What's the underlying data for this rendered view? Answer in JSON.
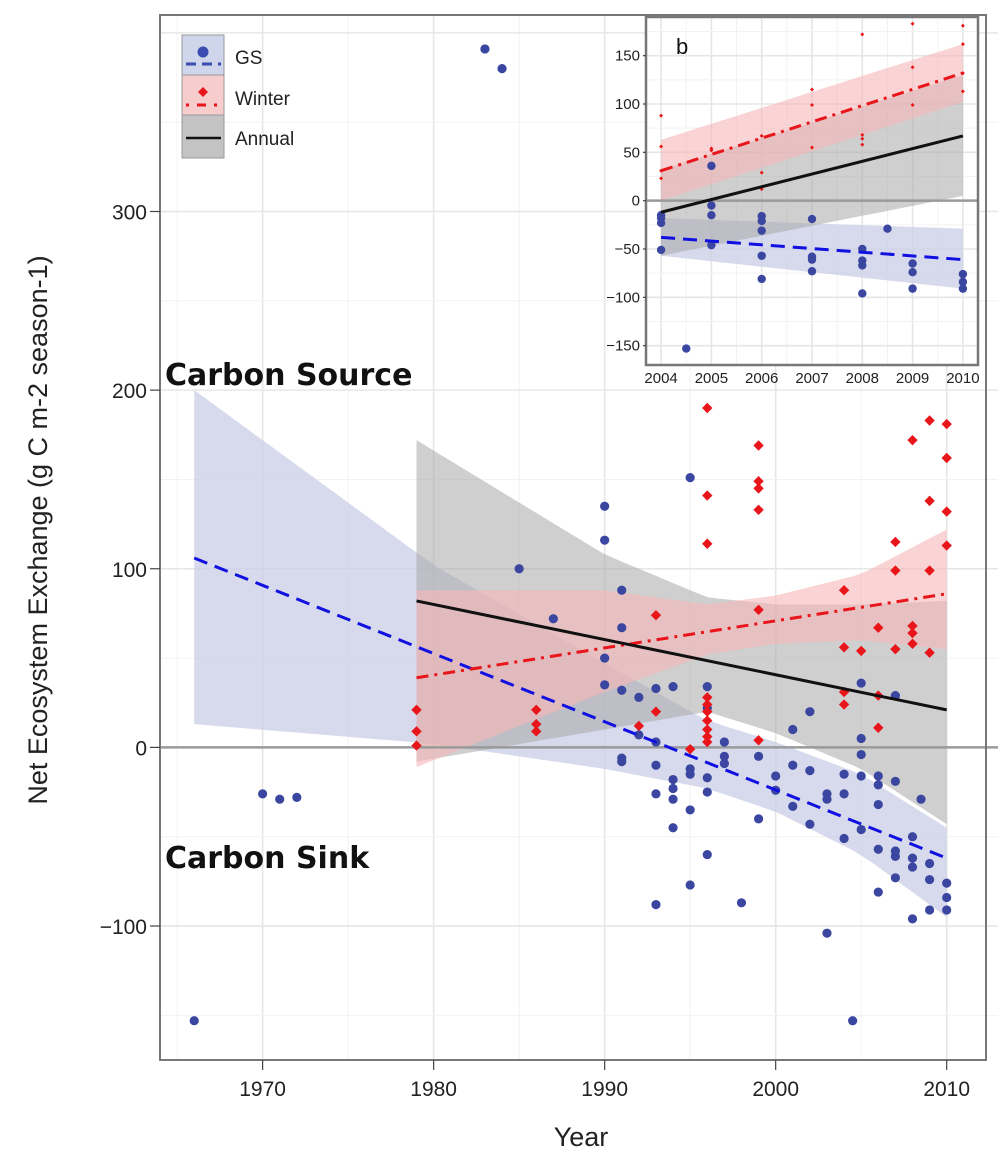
{
  "chart_data": {
    "type": "scatter",
    "title": "",
    "xlabel": "Year",
    "ylabel": "Net Ecosystem Exchange (g C m-2 season-1)",
    "xlim": [
      1964,
      2013
    ],
    "ylim": [
      -175,
      410
    ],
    "x_ticks": [
      1970,
      1980,
      1990,
      2000,
      2010
    ],
    "y_ticks": [
      -100,
      0,
      100,
      200,
      300
    ],
    "grid": true,
    "legend": {
      "placement": "top-left",
      "entries": [
        {
          "name": "GS",
          "color": "#3a46a0",
          "line": "dashed",
          "marker": "circle"
        },
        {
          "name": "Winter",
          "color": "#e8151b",
          "line": "dot-dash",
          "marker": "diamond"
        },
        {
          "name": "Annual",
          "color": "#111111",
          "line": "solid",
          "marker": "none"
        }
      ]
    },
    "annotations": [
      "Carbon Source",
      "Carbon Sink"
    ],
    "reference_line_y": 0,
    "colors": {
      "gs": "#3a46a0",
      "gs_line": "#1010e0",
      "gs_band": "#c9cde6",
      "winter": "#e8151b",
      "winter_band": "#f7b7b7",
      "annual": "#111111",
      "annual_band": "#a8a8a8"
    },
    "series": [
      {
        "name": "GS",
        "points": [
          [
            1966,
            -153
          ],
          [
            1970,
            -26
          ],
          [
            1971,
            -29
          ],
          [
            1972,
            -28
          ],
          [
            1983,
            391
          ],
          [
            1984,
            380
          ],
          [
            1985,
            100
          ],
          [
            1987,
            72
          ],
          [
            1990,
            135
          ],
          [
            1990,
            116
          ],
          [
            1990,
            50
          ],
          [
            1990,
            35
          ],
          [
            1991,
            88
          ],
          [
            1991,
            67
          ],
          [
            1991,
            32
          ],
          [
            1991,
            -6
          ],
          [
            1991,
            -8
          ],
          [
            1992,
            28
          ],
          [
            1992,
            7
          ],
          [
            1993,
            33
          ],
          [
            1993,
            3
          ],
          [
            1993,
            -10
          ],
          [
            1993,
            -26
          ],
          [
            1993,
            -88
          ],
          [
            1994,
            34
          ],
          [
            1994,
            -18
          ],
          [
            1994,
            -23
          ],
          [
            1994,
            -29
          ],
          [
            1994,
            -45
          ],
          [
            1995,
            151
          ],
          [
            1995,
            -12
          ],
          [
            1995,
            -15
          ],
          [
            1995,
            -35
          ],
          [
            1995,
            -77
          ],
          [
            1996,
            34
          ],
          [
            1996,
            22
          ],
          [
            1996,
            -17
          ],
          [
            1996,
            -25
          ],
          [
            1996,
            -60
          ],
          [
            1997,
            3
          ],
          [
            1997,
            -5
          ],
          [
            1997,
            -9
          ],
          [
            1998,
            -87
          ],
          [
            1999,
            -5
          ],
          [
            1999,
            -40
          ],
          [
            2000,
            -16
          ],
          [
            2000,
            -24
          ],
          [
            2001,
            10
          ],
          [
            2001,
            -10
          ],
          [
            2001,
            -33
          ],
          [
            2002,
            -13
          ],
          [
            2002,
            -43
          ],
          [
            2002,
            20
          ],
          [
            2003,
            -26
          ],
          [
            2003,
            -29
          ],
          [
            2003,
            -104
          ],
          [
            2004,
            -15
          ],
          [
            2004,
            -26
          ],
          [
            2004,
            -51
          ],
          [
            2004.5,
            -153
          ],
          [
            2005,
            5
          ],
          [
            2005,
            -4
          ],
          [
            2005,
            -16
          ],
          [
            2005,
            -46
          ],
          [
            2005,
            36
          ],
          [
            2006,
            -16
          ],
          [
            2006,
            -21
          ],
          [
            2006,
            -32
          ],
          [
            2006,
            -57
          ],
          [
            2006,
            -81
          ],
          [
            2007,
            -19
          ],
          [
            2007,
            -58
          ],
          [
            2007,
            -61
          ],
          [
            2007,
            -73
          ],
          [
            2007,
            29
          ],
          [
            2008,
            -50
          ],
          [
            2008,
            -62
          ],
          [
            2008,
            -67
          ],
          [
            2008,
            -96
          ],
          [
            2008.5,
            -29
          ],
          [
            2009,
            -65
          ],
          [
            2009,
            -74
          ],
          [
            2009,
            -91
          ],
          [
            2010,
            -76
          ],
          [
            2010,
            -84
          ],
          [
            2010,
            -91
          ]
        ],
        "fit": {
          "x": [
            1966,
            2010
          ],
          "y": [
            106,
            -62
          ]
        },
        "ci": {
          "x": [
            1966,
            1980,
            1990,
            1996,
            2000,
            2005,
            2010
          ],
          "upper": [
            200,
            102,
            47,
            15,
            3,
            -15,
            -45
          ],
          "lower": [
            13,
            2,
            -12,
            -23,
            -36,
            -60,
            -95
          ]
        }
      },
      {
        "name": "Winter",
        "points": [
          [
            1979,
            21
          ],
          [
            1979,
            9
          ],
          [
            1979,
            1
          ],
          [
            1986,
            21
          ],
          [
            1986,
            13
          ],
          [
            1986,
            9
          ],
          [
            1992,
            12
          ],
          [
            1993,
            74
          ],
          [
            1993,
            20
          ],
          [
            1995,
            -1
          ],
          [
            1996,
            190
          ],
          [
            1996,
            141
          ],
          [
            1996,
            114
          ],
          [
            1996,
            28
          ],
          [
            1996,
            24
          ],
          [
            1996,
            20
          ],
          [
            1996,
            15
          ],
          [
            1996,
            10
          ],
          [
            1996,
            6
          ],
          [
            1996,
            3
          ],
          [
            1999,
            169
          ],
          [
            1999,
            149
          ],
          [
            1999,
            145
          ],
          [
            1999,
            133
          ],
          [
            1999,
            77
          ],
          [
            1999,
            4
          ],
          [
            2004,
            88
          ],
          [
            2004,
            56
          ],
          [
            2004,
            31
          ],
          [
            2004,
            24
          ],
          [
            2005,
            54
          ],
          [
            2006,
            67
          ],
          [
            2006,
            29
          ],
          [
            2006,
            11
          ],
          [
            2007,
            115
          ],
          [
            2007,
            99
          ],
          [
            2007,
            55
          ],
          [
            2008,
            172
          ],
          [
            2008,
            68
          ],
          [
            2008,
            64
          ],
          [
            2008,
            58
          ],
          [
            2009,
            183
          ],
          [
            2009,
            138
          ],
          [
            2009,
            99
          ],
          [
            2009,
            53
          ],
          [
            2010,
            181
          ],
          [
            2010,
            162
          ],
          [
            2010,
            132
          ],
          [
            2010,
            113
          ]
        ],
        "fit": {
          "x": [
            1979,
            2010
          ],
          "y": [
            39,
            86
          ]
        },
        "ci": {
          "x": [
            1979,
            1990,
            1996,
            2000,
            2005,
            2010
          ],
          "upper": [
            88,
            88,
            80,
            85,
            97,
            122
          ],
          "lower": [
            -11,
            31,
            52,
            58,
            60,
            55
          ]
        }
      },
      {
        "name": "Annual",
        "points": [],
        "fit": {
          "x": [
            1979,
            2010
          ],
          "y": [
            82,
            21
          ]
        },
        "ci": {
          "x": [
            1979,
            1990,
            1996,
            2000,
            2005,
            2010
          ],
          "upper": [
            172,
            108,
            84,
            80,
            80,
            82
          ],
          "lower": [
            -8,
            10,
            20,
            8,
            -12,
            -43
          ]
        }
      }
    ],
    "inset": {
      "label": "b",
      "type": "scatter",
      "xlim": [
        2003.7,
        2010.3
      ],
      "ylim": [
        -170,
        190
      ],
      "x_ticks": [
        2004,
        2005,
        2006,
        2007,
        2008,
        2009,
        2010
      ],
      "y_ticks": [
        -150,
        -100,
        -50,
        0,
        50,
        100,
        150
      ],
      "series": [
        {
          "name": "GS",
          "points": [
            [
              2004,
              -15
            ],
            [
              2004,
              -18
            ],
            [
              2004,
              -23
            ],
            [
              2004,
              -51
            ],
            [
              2004.5,
              -153
            ],
            [
              2005,
              36
            ],
            [
              2005,
              -5
            ],
            [
              2005,
              -15
            ],
            [
              2005,
              -46
            ],
            [
              2006,
              -16
            ],
            [
              2006,
              -21
            ],
            [
              2006,
              -31
            ],
            [
              2006,
              -57
            ],
            [
              2006,
              -81
            ],
            [
              2007,
              -19
            ],
            [
              2007,
              -58
            ],
            [
              2007,
              -61
            ],
            [
              2007,
              -73
            ],
            [
              2008,
              -50
            ],
            [
              2008,
              -62
            ],
            [
              2008,
              -67
            ],
            [
              2008,
              -96
            ],
            [
              2008.5,
              -29
            ],
            [
              2009,
              -65
            ],
            [
              2009,
              -74
            ],
            [
              2009,
              -91
            ],
            [
              2010,
              -76
            ],
            [
              2010,
              -84
            ],
            [
              2010,
              -91
            ]
          ],
          "fit": {
            "x": [
              2004,
              2010
            ],
            "y": [
              -38,
              -61
            ]
          },
          "ci": {
            "x": [
              2004,
              2010
            ],
            "upper": [
              -18,
              -29
            ],
            "lower": [
              -57,
              -91
            ]
          }
        },
        {
          "name": "Winter",
          "points": [
            [
              2004,
              88
            ],
            [
              2004,
              56
            ],
            [
              2004,
              31
            ],
            [
              2004,
              23
            ],
            [
              2005,
              54
            ],
            [
              2005,
              52
            ],
            [
              2006,
              67
            ],
            [
              2006,
              29
            ],
            [
              2006,
              12
            ],
            [
              2007,
              115
            ],
            [
              2007,
              99
            ],
            [
              2007,
              55
            ],
            [
              2008,
              172
            ],
            [
              2008,
              68
            ],
            [
              2008,
              64
            ],
            [
              2008,
              58
            ],
            [
              2009,
              183
            ],
            [
              2009,
              138
            ],
            [
              2009,
              99
            ],
            [
              2010,
              181
            ],
            [
              2010,
              162
            ],
            [
              2010,
              132
            ],
            [
              2010,
              113
            ]
          ],
          "fit": {
            "x": [
              2004,
              2010
            ],
            "y": [
              31,
              132
            ]
          },
          "ci": {
            "x": [
              2004,
              2010
            ],
            "upper": [
              63,
              162
            ],
            "lower": [
              0,
              102
            ]
          }
        },
        {
          "name": "Annual",
          "points": [],
          "fit": {
            "x": [
              2004,
              2010
            ],
            "y": [
              -12,
              67
            ]
          },
          "ci": {
            "x": [
              2004,
              2010
            ],
            "upper": [
              32,
              130
            ],
            "lower": [
              -57,
              5
            ]
          }
        }
      ]
    }
  }
}
